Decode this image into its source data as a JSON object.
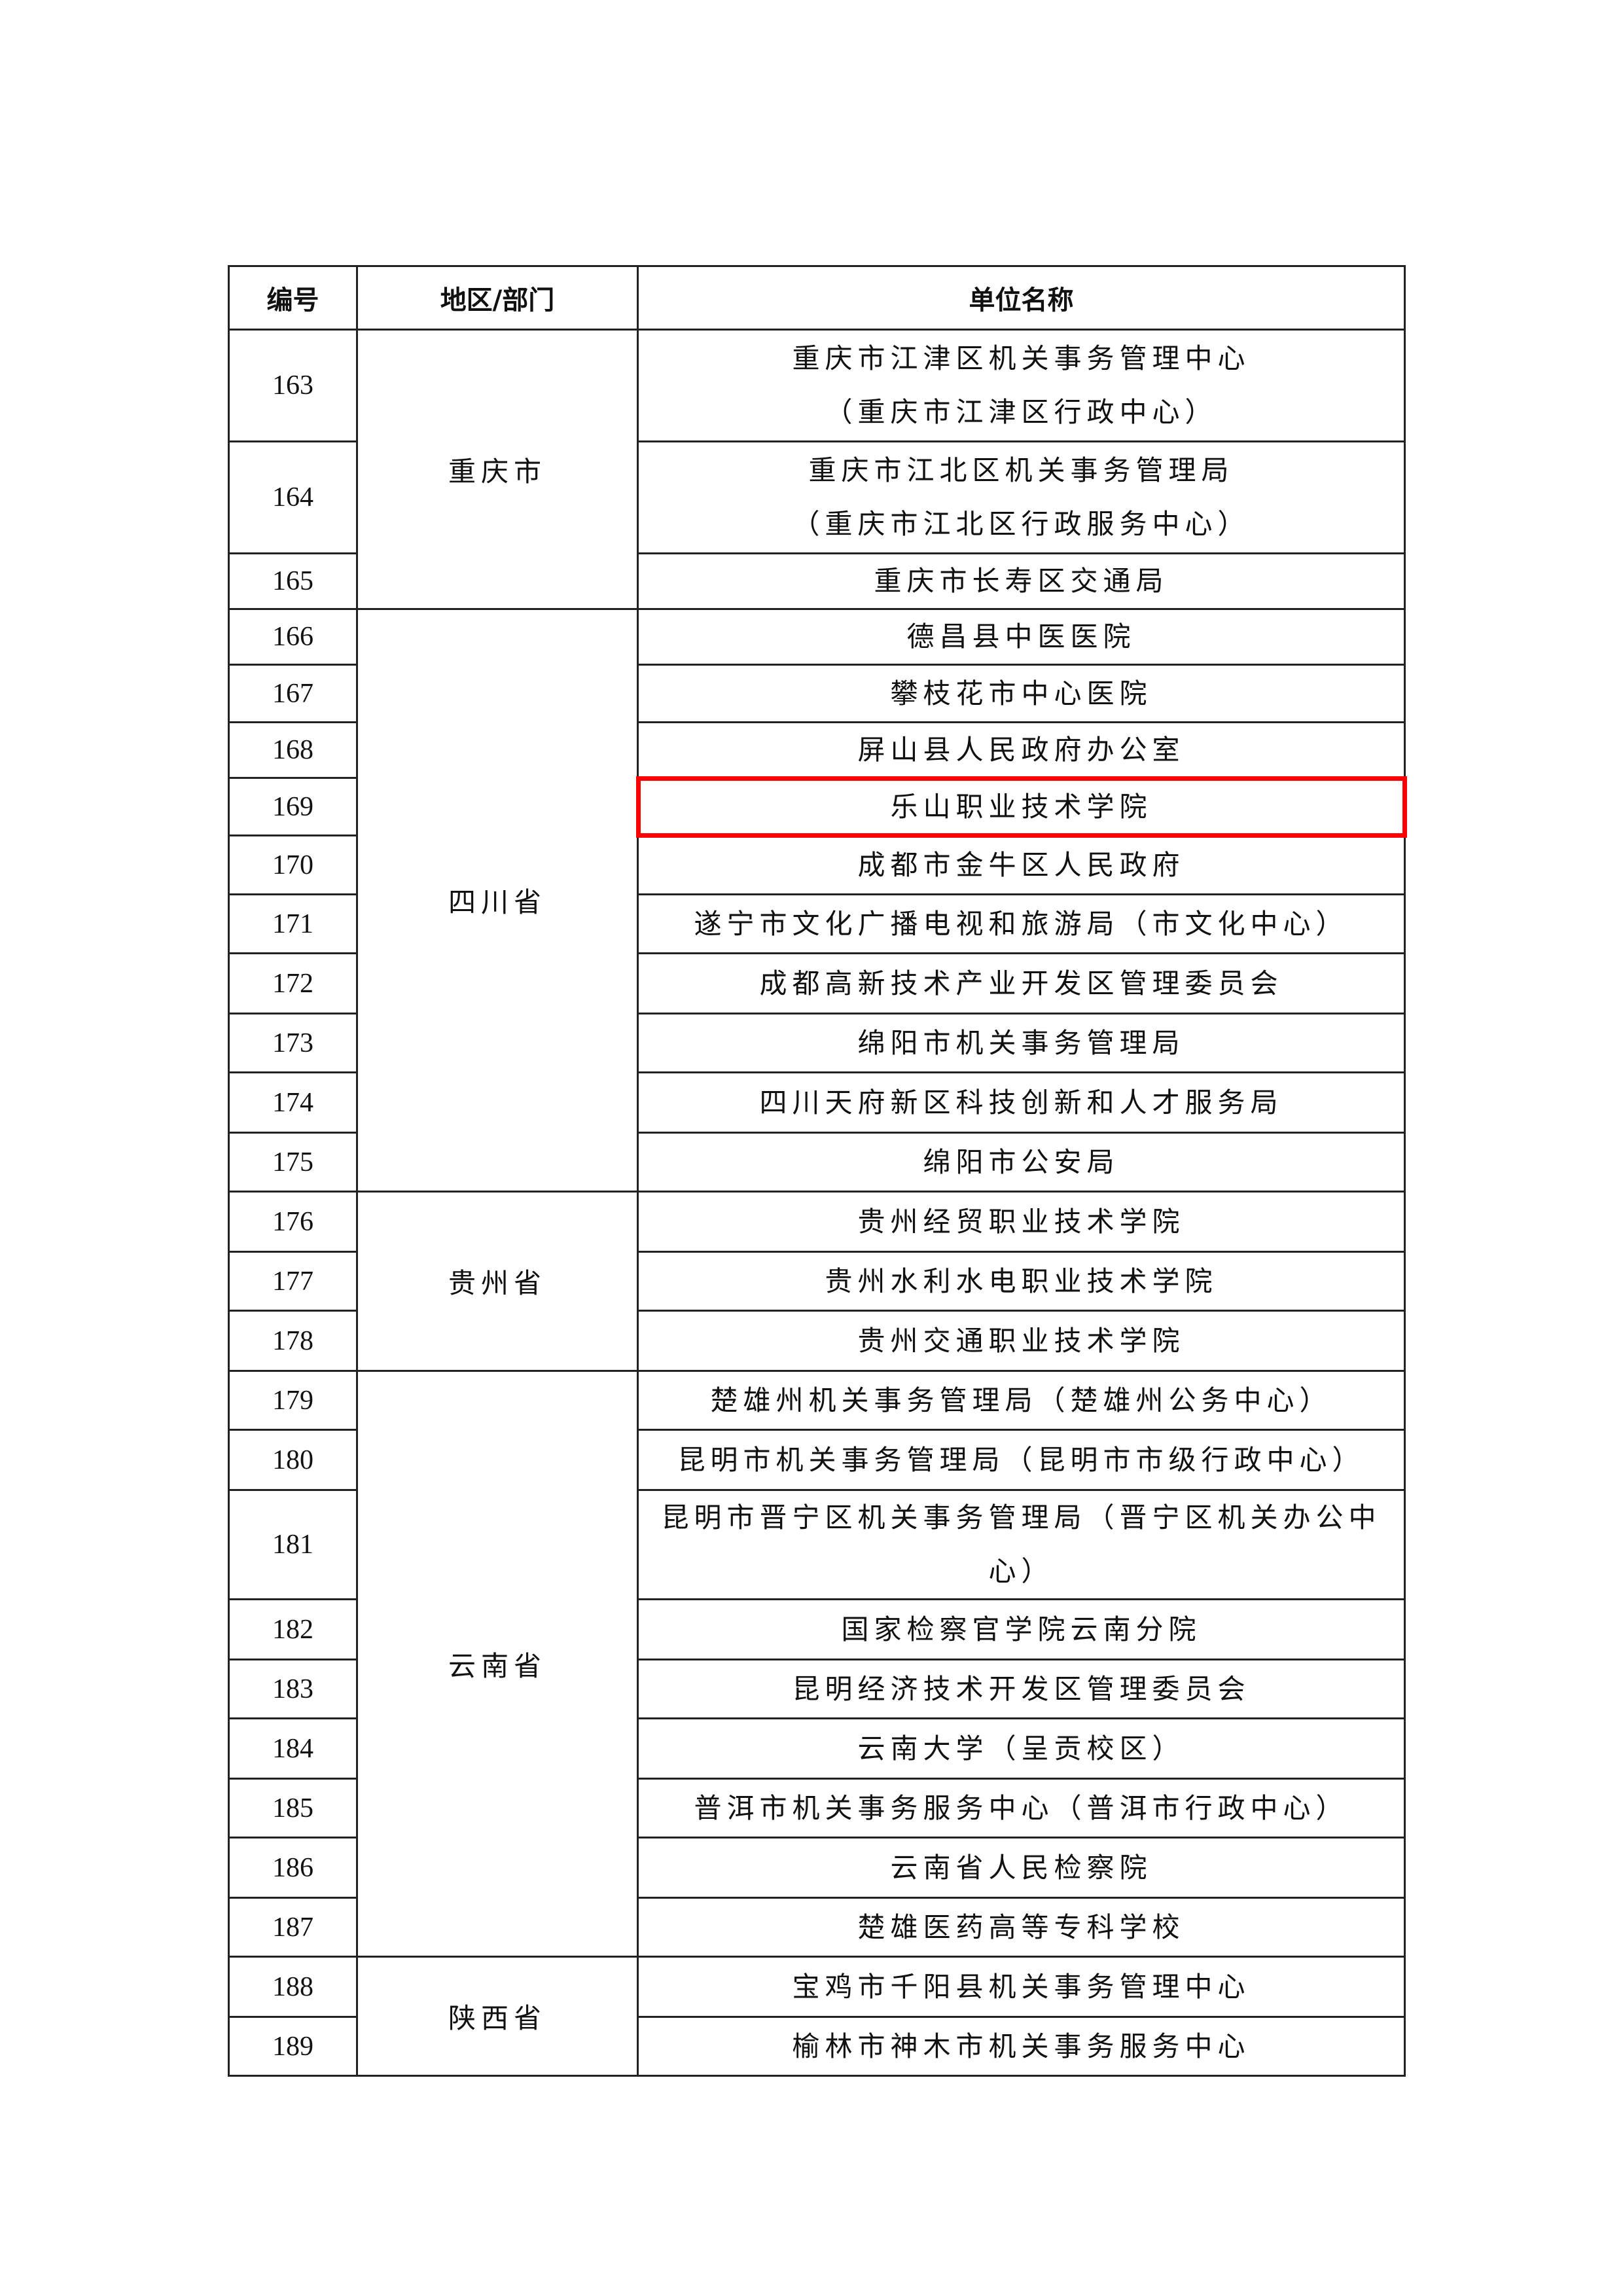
{
  "header": {
    "no": "编号",
    "region": "地区/部门",
    "name": "单位名称"
  },
  "highlight_color": "#ff0000",
  "highlighted_no": "169",
  "groups": [
    {
      "region": "重庆市",
      "rows": [
        {
          "no": "163",
          "name": [
            "重庆市江津区机关事务管理中心",
            "（重庆市江津区行政中心）"
          ]
        },
        {
          "no": "164",
          "name": [
            "重庆市江北区机关事务管理局",
            "（重庆市江北区行政服务中心）"
          ]
        },
        {
          "no": "165",
          "name": [
            "重庆市长寿区交通局"
          ]
        }
      ]
    },
    {
      "region": "四川省",
      "rows": [
        {
          "no": "166",
          "name": [
            "德昌县中医医院"
          ]
        },
        {
          "no": "167",
          "name": [
            "攀枝花市中心医院"
          ]
        },
        {
          "no": "168",
          "name": [
            "屏山县人民政府办公室"
          ]
        },
        {
          "no": "169",
          "name": [
            "乐山职业技术学院"
          ]
        },
        {
          "no": "170",
          "name": [
            "成都市金牛区人民政府"
          ]
        },
        {
          "no": "171",
          "name": [
            "遂宁市文化广播电视和旅游局（市文化中心）"
          ]
        },
        {
          "no": "172",
          "name": [
            "成都高新技术产业开发区管理委员会"
          ]
        },
        {
          "no": "173",
          "name": [
            "绵阳市机关事务管理局"
          ]
        },
        {
          "no": "174",
          "name": [
            "四川天府新区科技创新和人才服务局"
          ]
        },
        {
          "no": "175",
          "name": [
            "绵阳市公安局"
          ]
        }
      ]
    },
    {
      "region": "贵州省",
      "rows": [
        {
          "no": "176",
          "name": [
            "贵州经贸职业技术学院"
          ]
        },
        {
          "no": "177",
          "name": [
            "贵州水利水电职业技术学院"
          ]
        },
        {
          "no": "178",
          "name": [
            "贵州交通职业技术学院"
          ]
        }
      ]
    },
    {
      "region": "云南省",
      "rows": [
        {
          "no": "179",
          "name": [
            "楚雄州机关事务管理局（楚雄州公务中心）"
          ]
        },
        {
          "no": "180",
          "name": [
            "昆明市机关事务管理局（昆明市市级行政中心）"
          ]
        },
        {
          "no": "181",
          "name": [
            "昆明市晋宁区机关事务管理局（晋宁区机关办公中心）"
          ]
        },
        {
          "no": "182",
          "name": [
            "国家检察官学院云南分院"
          ]
        },
        {
          "no": "183",
          "name": [
            "昆明经济技术开发区管理委员会"
          ]
        },
        {
          "no": "184",
          "name": [
            "云南大学（呈贡校区）"
          ]
        },
        {
          "no": "185",
          "name": [
            "普洱市机关事务服务中心（普洱市行政中心）"
          ]
        },
        {
          "no": "186",
          "name": [
            "云南省人民检察院"
          ]
        },
        {
          "no": "187",
          "name": [
            "楚雄医药高等专科学校"
          ]
        }
      ]
    },
    {
      "region": "陕西省",
      "rows": [
        {
          "no": "188",
          "name": [
            "宝鸡市千阳县机关事务管理中心"
          ]
        },
        {
          "no": "189",
          "name": [
            "榆林市神木市机关事务服务中心"
          ]
        }
      ]
    }
  ]
}
